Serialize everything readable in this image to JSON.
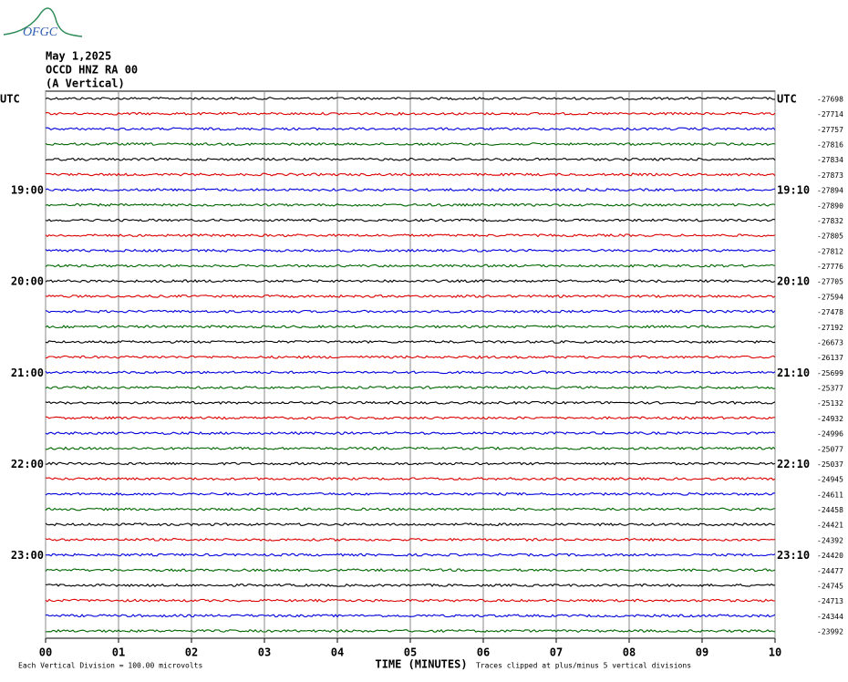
{
  "chart_data": {
    "type": "helicorder",
    "logo": "OFGC",
    "date": "May 1,2025",
    "station": "OCCD HNZ RA 00",
    "component": "(A Vertical)",
    "xlabel": "TIME (MINUTES)",
    "xlim": [
      0,
      10
    ],
    "xticks": [
      {
        "value": 0,
        "label": "00"
      },
      {
        "value": 1,
        "label": "01"
      },
      {
        "value": 2,
        "label": "02"
      },
      {
        "value": 3,
        "label": "03"
      },
      {
        "value": 4,
        "label": "04"
      },
      {
        "value": 5,
        "label": "05"
      },
      {
        "value": 6,
        "label": "06"
      },
      {
        "value": 7,
        "label": "07"
      },
      {
        "value": 8,
        "label": "08"
      },
      {
        "value": 9,
        "label": "09"
      },
      {
        "value": 10,
        "label": "10"
      }
    ],
    "grid": true,
    "colors": [
      "#000000",
      "#dd0000",
      "#0000dd",
      "#006600"
    ],
    "left_labels": [
      "UTC",
      null,
      null,
      null,
      null,
      null,
      "19:00",
      null,
      null,
      null,
      null,
      null,
      "20:00",
      null,
      null,
      null,
      null,
      null,
      "21:00",
      null,
      null,
      null,
      null,
      null,
      "22:00",
      null,
      null,
      null,
      null,
      null,
      "23:00",
      null,
      null,
      null,
      null,
      null
    ],
    "right_labels": [
      "UTC",
      null,
      null,
      null,
      null,
      null,
      "19:10",
      null,
      null,
      null,
      null,
      null,
      "20:10",
      null,
      null,
      null,
      null,
      null,
      "21:10",
      null,
      null,
      null,
      null,
      null,
      "22:10",
      null,
      null,
      null,
      null,
      null,
      "23:10",
      null,
      null,
      null,
      null,
      null
    ],
    "trace_offsets": [
      -27698,
      -27714,
      -27757,
      -27816,
      -27834,
      -27873,
      -27894,
      -27890,
      -27832,
      -27805,
      -27812,
      -27776,
      -27705,
      -27594,
      -27478,
      -27192,
      -26673,
      -26137,
      -25699,
      -25377,
      -25132,
      -24932,
      -24996,
      -25077,
      -25037,
      -24945,
      -24611,
      -24458,
      -24421,
      -24392,
      -24420,
      -24477,
      -24745,
      -24713,
      -24344,
      -23992
    ],
    "scale_note": "Each Vertical Division =  100.00 microvolts",
    "clip_note": "Traces clipped at plus/minus 5 vertical divisions"
  }
}
